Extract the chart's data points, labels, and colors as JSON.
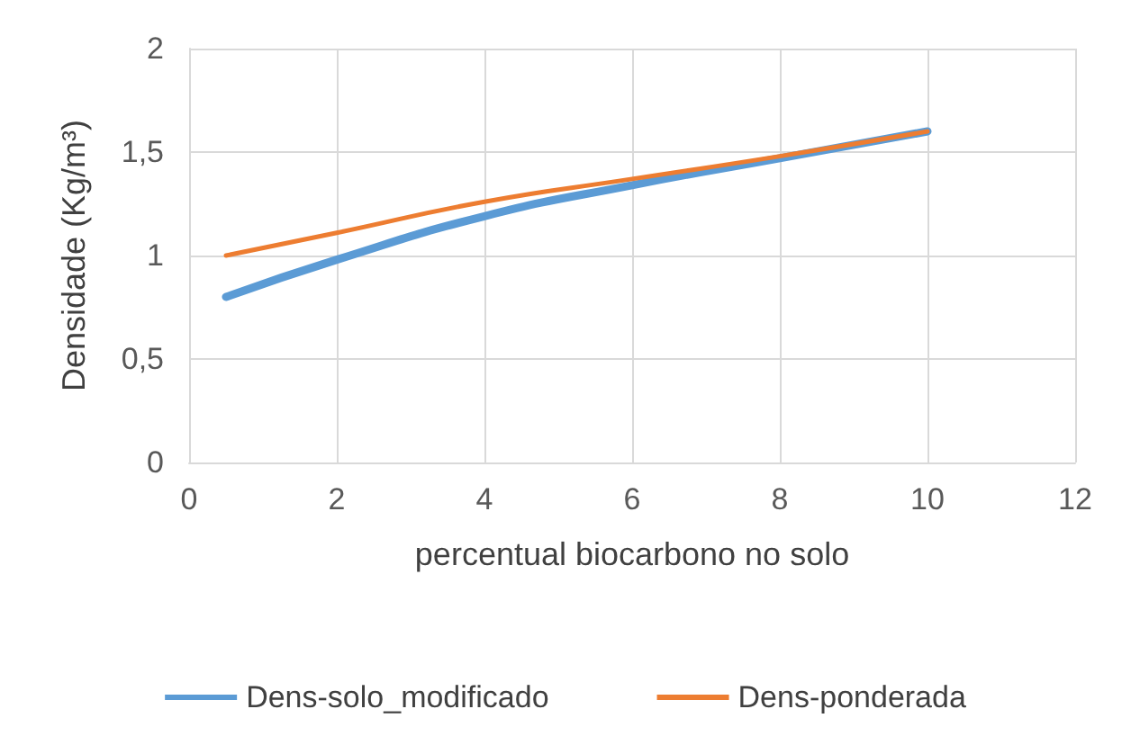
{
  "chart_data": {
    "type": "line",
    "xlabel": "percentual biocarbono no solo",
    "ylabel": "Densidade (Kg/m³)",
    "xlim": [
      0,
      12
    ],
    "xticks": [
      0,
      2,
      4,
      6,
      8,
      10,
      12
    ],
    "ylim": [
      0,
      2
    ],
    "yticks": [
      0,
      {
        "value": 0.5,
        "label": "0,5"
      },
      1,
      {
        "value": 1.5,
        "label": "1,5"
      },
      2
    ],
    "x": [
      0.5,
      2,
      4,
      6,
      8,
      10
    ],
    "series": [
      {
        "name": "Dens-solo_modificado",
        "color": "#5b9bd5",
        "values": [
          0.8,
          0.98,
          1.19,
          1.34,
          1.47,
          1.6
        ]
      },
      {
        "name": "Dens-ponderada",
        "color": "#ed7d31",
        "values": [
          1.0,
          1.11,
          1.26,
          1.37,
          1.48,
          1.6
        ]
      }
    ],
    "grid": true,
    "legend": "bottom",
    "marker": "none",
    "line_style": "solid"
  }
}
